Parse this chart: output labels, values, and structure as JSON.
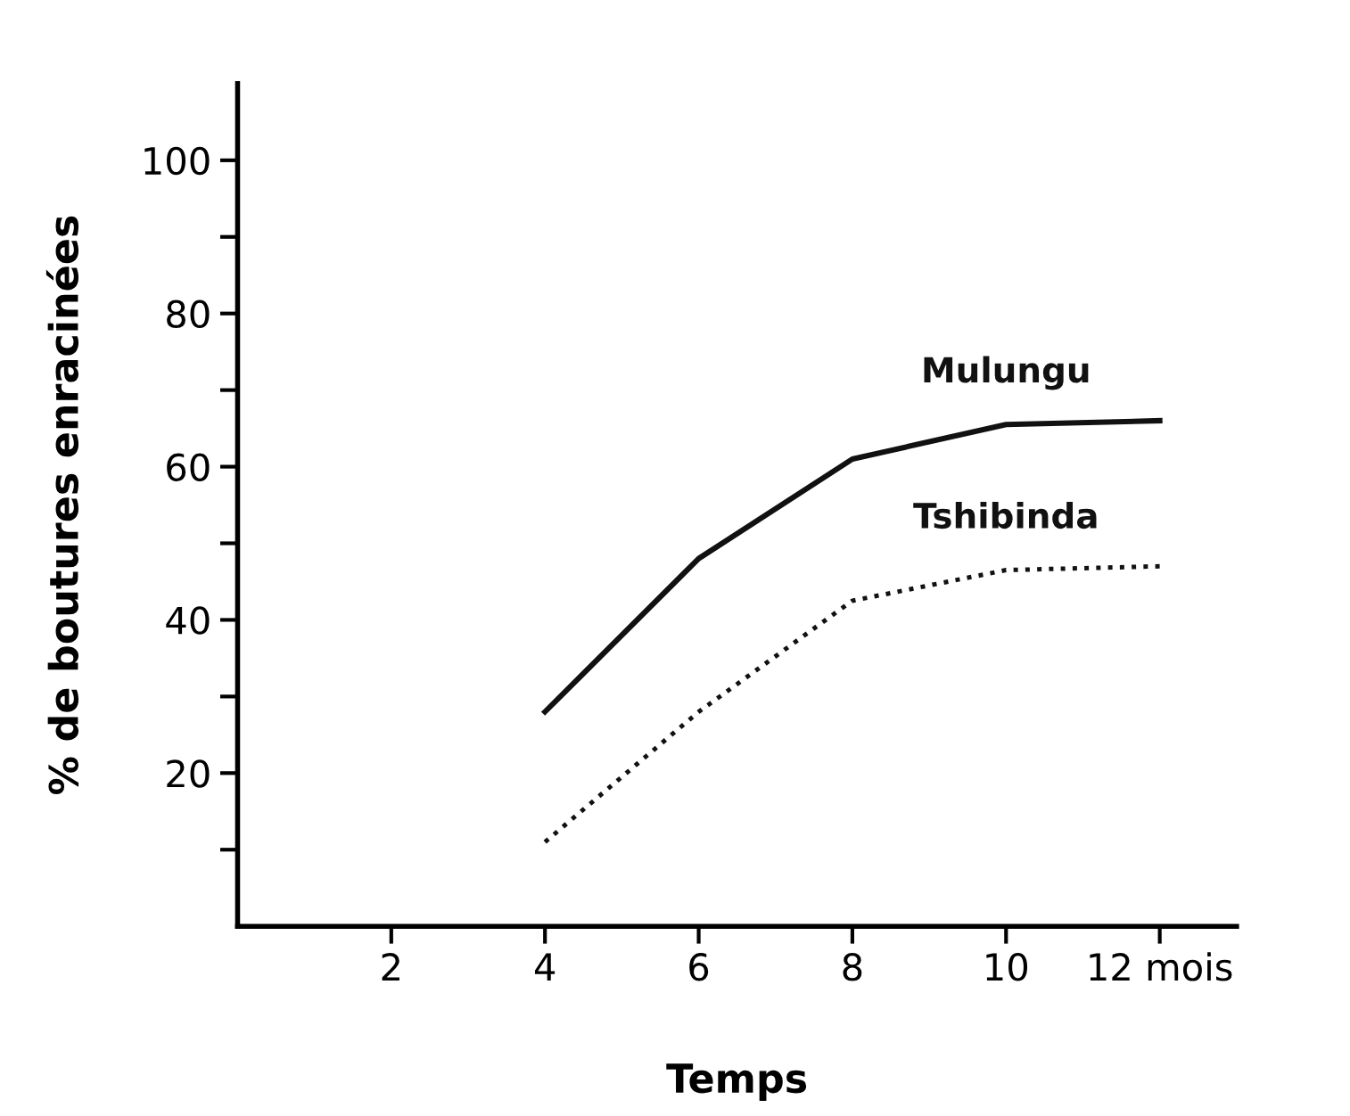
{
  "chart_data": {
    "type": "line",
    "xlabel": "Temps",
    "ylabel": "% de boutures enracinées",
    "x": [
      4,
      6,
      8,
      10,
      12
    ],
    "series": [
      {
        "name": "Mulungu",
        "color": "#111111",
        "line_style": "solid",
        "values": [
          28,
          48,
          61,
          65.5,
          66
        ]
      },
      {
        "name": "Tshibinda",
        "color": "#111111",
        "line_style": "dotted",
        "values": [
          11,
          28,
          42.5,
          46.5,
          47
        ]
      }
    ],
    "xlim": [
      0,
      13
    ],
    "xticks": [
      2,
      4,
      6,
      8,
      10,
      {
        "value": 12,
        "label": "12 mois"
      }
    ],
    "ylim": [
      0,
      110
    ],
    "yticks": [
      {
        "value": 10,
        "label": null
      },
      20,
      {
        "value": 30,
        "label": null
      },
      40,
      {
        "value": 50,
        "label": null
      },
      60,
      {
        "value": 70,
        "label": null
      },
      80,
      {
        "value": 90,
        "label": null
      },
      100
    ],
    "grid": false,
    "legend": false,
    "marker": "none"
  }
}
